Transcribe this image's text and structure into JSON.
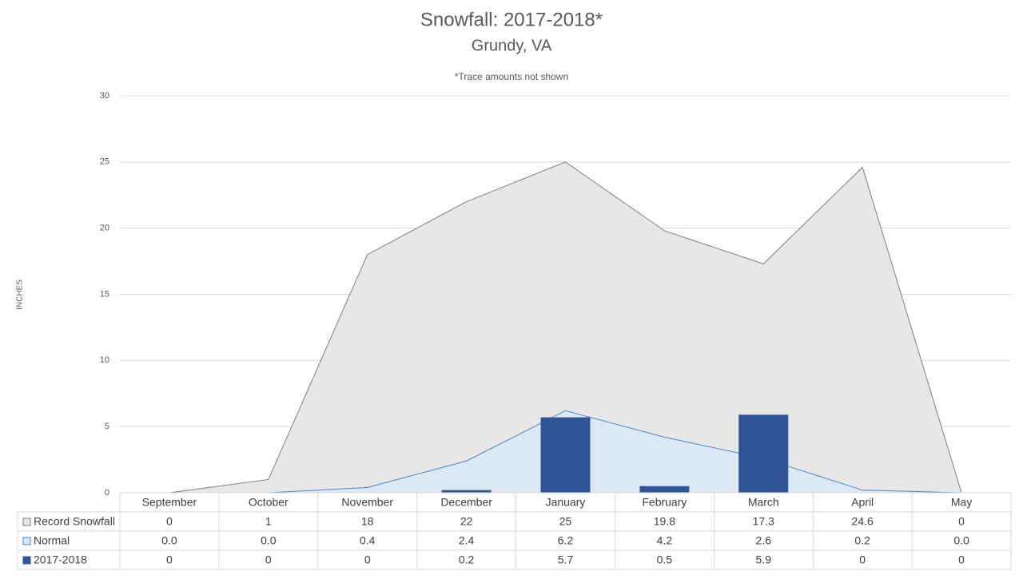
{
  "chart_data": {
    "type": "combo",
    "title": "Snowfall: 2017-2018*",
    "subtitle": "Grundy, VA",
    "annotation": "*Trace amounts not shown",
    "y_label": "INCHES",
    "categories": [
      "September",
      "October",
      "November",
      "December",
      "January",
      "February",
      "March",
      "April",
      "May"
    ],
    "series": [
      {
        "name": "Record Snowfall",
        "type": "area",
        "color": "#e7e7e7",
        "line_color": "#7f7f7f",
        "values": [
          0,
          1,
          18,
          22,
          25,
          19.8,
          17.3,
          24.6,
          0
        ]
      },
      {
        "name": "Normal",
        "type": "area",
        "color": "#dde8f5",
        "line_color": "#4a86c6",
        "values": [
          0,
          0,
          0.4,
          2.4,
          6.2,
          4.2,
          2.6,
          0.2,
          0
        ],
        "value_labels": [
          "0.0",
          "0.0",
          "0.4",
          "2.4",
          "6.2",
          "4.2",
          "2.6",
          "0.2",
          "0.0"
        ]
      },
      {
        "name": "2017-2018",
        "type": "bar",
        "color": "#2f5597",
        "values": [
          0,
          0,
          0,
          0.2,
          5.7,
          0.5,
          5.9,
          0,
          0
        ]
      }
    ],
    "ylim": [
      0,
      30
    ],
    "yticks": [
      0,
      5,
      10,
      15,
      20,
      25,
      30
    ],
    "grid": true,
    "data_table": true
  }
}
